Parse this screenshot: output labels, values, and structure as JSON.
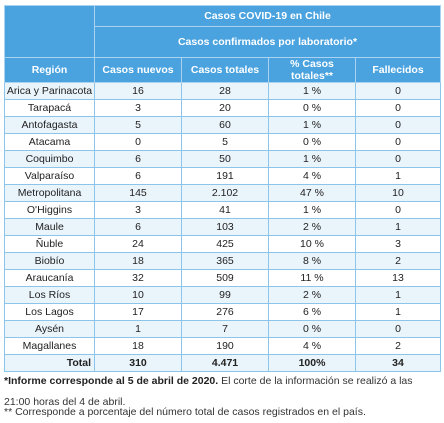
{
  "table": {
    "title": "Casos COVID-19 en Chile",
    "subtitle": "Casos confirmados por laboratorio*",
    "headers": [
      "Región",
      "Casos nuevos",
      "Casos totales",
      "% Casos totales**",
      "Fallecidos"
    ],
    "rows": [
      [
        "Arica y Parinacota",
        "16",
        "28",
        "1 %",
        "0"
      ],
      [
        "Tarapacá",
        "3",
        "20",
        "0 %",
        "0"
      ],
      [
        "Antofagasta",
        "5",
        "60",
        "1 %",
        "0"
      ],
      [
        "Atacama",
        "0",
        "5",
        "0 %",
        "0"
      ],
      [
        "Coquimbo",
        "6",
        "50",
        "1 %",
        "0"
      ],
      [
        "Valparaíso",
        "6",
        "191",
        "4 %",
        "1"
      ],
      [
        "Metropolitana",
        "145",
        "2.102",
        "47 %",
        "10"
      ],
      [
        "O'Higgins",
        "3",
        "41",
        "1 %",
        "0"
      ],
      [
        "Maule",
        "6",
        "103",
        "2 %",
        "1"
      ],
      [
        "Ñuble",
        "24",
        "425",
        "10 %",
        "3"
      ],
      [
        "Biobío",
        "18",
        "365",
        "8 %",
        "2"
      ],
      [
        "Araucanía",
        "32",
        "509",
        "11 %",
        "13"
      ],
      [
        "Los Ríos",
        "10",
        "99",
        "2 %",
        "1"
      ],
      [
        "Los Lagos",
        "17",
        "276",
        "6 %",
        "1"
      ],
      [
        "Aysén",
        "1",
        "7",
        "0 %",
        "0"
      ],
      [
        "Magallanes",
        "18",
        "190",
        "4 %",
        "2"
      ]
    ],
    "total": [
      "Total",
      "310",
      "4.471",
      "100%",
      "34"
    ]
  },
  "notes": {
    "note1_bold": "*Informe corresponde al 5 de abril de 2020.",
    "note1_rest": " El corte de la información se realizó a las 21:00 horas del 4 de abril.",
    "note2": "** Corresponde a porcentaje del número total de casos registrados en el país."
  }
}
